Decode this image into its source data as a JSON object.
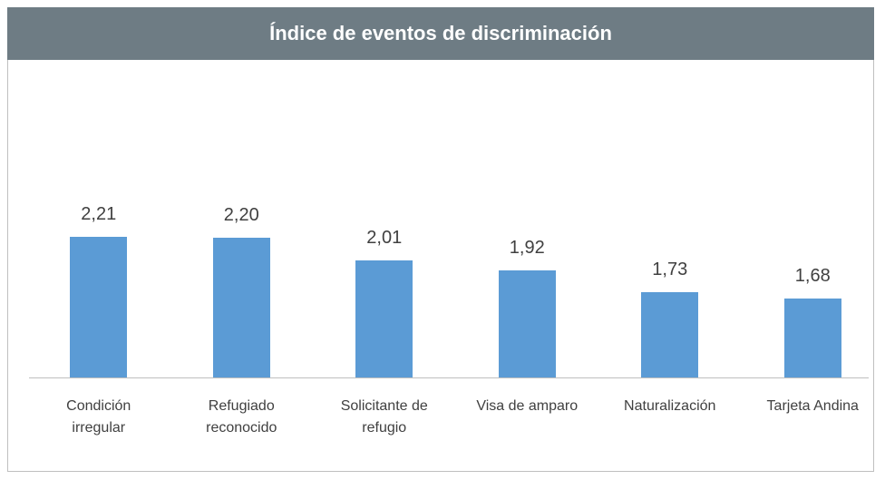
{
  "chart_data": {
    "type": "bar",
    "title": "Índice de eventos de discriminación",
    "categories": [
      "Condición irregular",
      "Refugiado reconocido",
      "Solicitante de refugio",
      "Visa de amparo",
      "Naturalización",
      "Tarjeta Andina"
    ],
    "values": [
      2.21,
      2.2,
      2.01,
      1.92,
      1.73,
      1.68
    ],
    "value_labels": [
      "2,21",
      "2,20",
      "2,01",
      "1,92",
      "1,73",
      "1,68"
    ],
    "color": "#5b9bd5",
    "ylim": [
      1,
      3.7
    ]
  }
}
